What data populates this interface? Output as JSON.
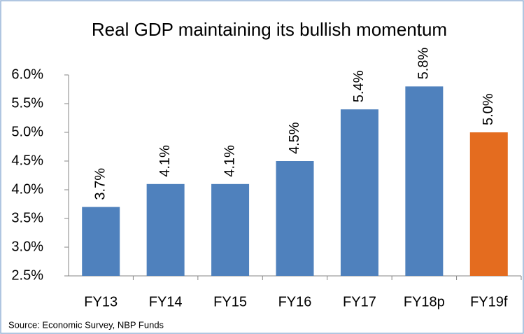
{
  "chart_data": {
    "type": "bar",
    "title": "Real GDP maintaining its bullish momentum",
    "source": "Source: Economic Survey, NBP Funds",
    "categories": [
      "FY13",
      "FY14",
      "FY15",
      "FY16",
      "FY17",
      "FY18p",
      "FY19f"
    ],
    "values": [
      3.7,
      4.1,
      4.1,
      4.5,
      5.4,
      5.8,
      5.0
    ],
    "value_labels": [
      "3.7%",
      "4.1%",
      "4.1%",
      "4.5%",
      "5.4%",
      "5.8%",
      "5.0%"
    ],
    "colors": [
      "#4f81bd",
      "#4f81bd",
      "#4f81bd",
      "#4f81bd",
      "#4f81bd",
      "#4f81bd",
      "#e46c1f"
    ],
    "ylim": [
      2.5,
      6.0
    ],
    "yticks": [
      {
        "value": 2.5,
        "label": "2.5%"
      },
      {
        "value": 3,
        "label": "3.0%"
      },
      {
        "value": 3.5,
        "label": "3.5%"
      },
      {
        "value": 4,
        "label": "4.0%"
      },
      {
        "value": 4.5,
        "label": "4.5%"
      },
      {
        "value": 5,
        "label": "5.0%"
      },
      {
        "value": 5.5,
        "label": "5.5%"
      },
      {
        "value": 6,
        "label": "6.0%"
      }
    ],
    "grid": false
  }
}
